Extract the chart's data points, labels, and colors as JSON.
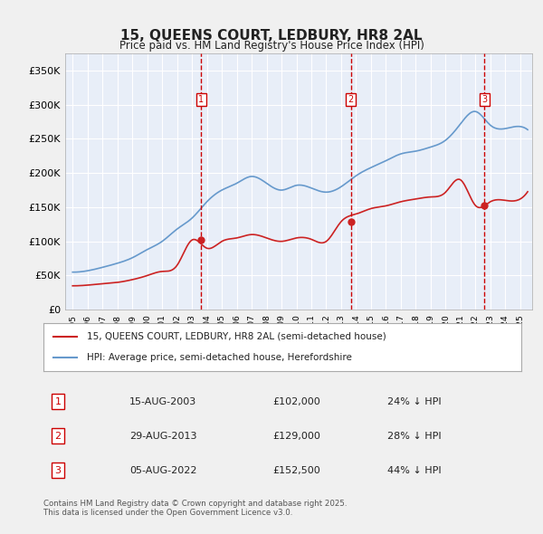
{
  "title": "15, QUEENS COURT, LEDBURY, HR8 2AL",
  "subtitle": "Price paid vs. HM Land Registry's House Price Index (HPI)",
  "xlabel": "",
  "ylabel": "",
  "ylim": [
    0,
    375000
  ],
  "yticks": [
    0,
    50000,
    100000,
    150000,
    200000,
    250000,
    300000,
    350000
  ],
  "ytick_labels": [
    "£0",
    "£50K",
    "£100K",
    "£150K",
    "£200K",
    "£250K",
    "£300K",
    "£350K"
  ],
  "background_color": "#e8eef8",
  "plot_bg_color": "#e8eef8",
  "grid_color": "#ffffff",
  "hpi_color": "#6699cc",
  "price_color": "#cc2222",
  "sale_dates": [
    "2003-08-15",
    "2013-08-29",
    "2022-08-05"
  ],
  "sale_prices": [
    102000,
    129000,
    152500
  ],
  "sale_labels": [
    "1",
    "2",
    "3"
  ],
  "sale_info": [
    {
      "label": "1",
      "date": "15-AUG-2003",
      "price": "£102,000",
      "hpi": "24% ↓ HPI"
    },
    {
      "label": "2",
      "date": "29-AUG-2013",
      "price": "£129,000",
      "hpi": "28% ↓ HPI"
    },
    {
      "label": "3",
      "date": "05-AUG-2022",
      "price": "£152,500",
      "hpi": "44% ↓ HPI"
    }
  ],
  "legend_line1": "15, QUEENS COURT, LEDBURY, HR8 2AL (semi-detached house)",
  "legend_line2": "HPI: Average price, semi-detached house, Herefordshire",
  "footer": "Contains HM Land Registry data © Crown copyright and database right 2025.\nThis data is licensed under the Open Government Licence v3.0.",
  "hpi_years": [
    1995,
    1996,
    1997,
    1998,
    1999,
    2000,
    2001,
    2002,
    2003,
    2004,
    2005,
    2006,
    2007,
    2008,
    2009,
    2010,
    2011,
    2012,
    2013,
    2014,
    2015,
    2016,
    2017,
    2018,
    2019,
    2020,
    2021,
    2022,
    2023,
    2024,
    2025
  ],
  "hpi_values": [
    55000,
    57000,
    62000,
    68000,
    76000,
    88000,
    100000,
    118000,
    134000,
    158000,
    175000,
    185000,
    195000,
    185000,
    175000,
    182000,
    178000,
    172000,
    180000,
    196000,
    208000,
    218000,
    228000,
    232000,
    238000,
    248000,
    272000,
    290000,
    270000,
    265000,
    268000
  ],
  "price_years": [
    1995,
    1996,
    1997,
    1998,
    1999,
    2000,
    2001,
    2002,
    2003,
    2004,
    2005,
    2006,
    2007,
    2008,
    2009,
    2010,
    2011,
    2012,
    2013,
    2014,
    2015,
    2016,
    2017,
    2018,
    2019,
    2020,
    2021,
    2022,
    2023,
    2024,
    2025
  ],
  "price_values": [
    35000,
    36000,
    38000,
    40000,
    44000,
    50000,
    56000,
    65000,
    102000,
    90000,
    100000,
    105000,
    110000,
    105000,
    100000,
    105000,
    103000,
    100000,
    129000,
    140000,
    148000,
    152000,
    158000,
    162000,
    165000,
    172000,
    190000,
    152500,
    158000,
    160000,
    162000
  ]
}
